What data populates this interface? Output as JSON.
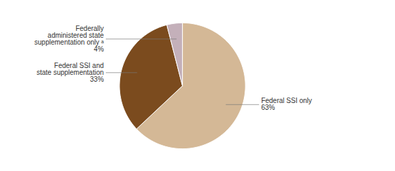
{
  "chart_data": {
    "type": "pie",
    "categories": [
      "Federal SSI only",
      "Federal SSI and\nstate supplementation",
      "Federally\nadministered state\nsupplementation only ᵃ"
    ],
    "values": [
      63,
      33,
      4
    ],
    "value_labels": [
      "63%",
      "33%",
      "4%"
    ],
    "colors": [
      "#d4b896",
      "#7b4b1e",
      "#c4b0ba"
    ],
    "data_labels": true
  }
}
